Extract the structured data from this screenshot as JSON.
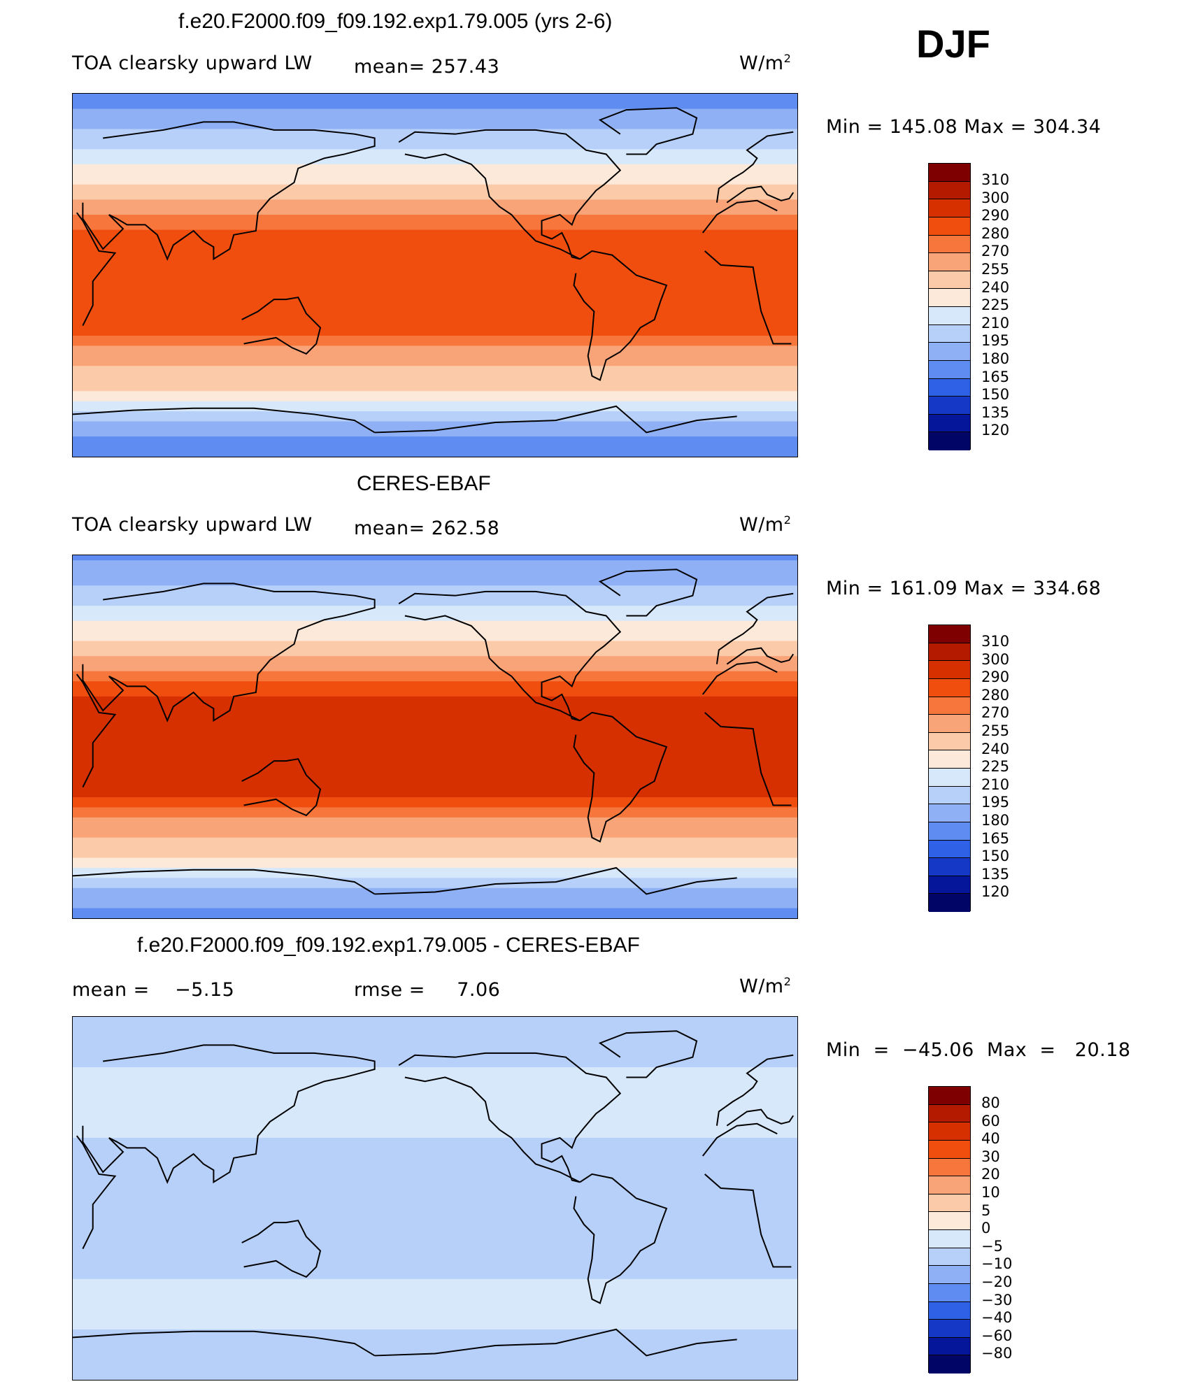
{
  "season": "DJF",
  "panels": [
    {
      "title": "f.e20.F2000.f09_f09.192.exp1.79.005 (yrs 2-6)",
      "left_label": "TOA clearsky upward LW",
      "mean_label": "mean= 257.43",
      "units": "W/m",
      "units_exp": "2",
      "minmax": "Min  =  145.08  Max  =  304.34",
      "colorbar_labels": [
        "310",
        "300",
        "290",
        "280",
        "270",
        "255",
        "240",
        "225",
        "210",
        "195",
        "180",
        "165",
        "150",
        "135",
        "120"
      ]
    },
    {
      "title": "CERES-EBAF",
      "left_label": "TOA clearsky upward LW",
      "mean_label": "mean= 262.58",
      "units": "W/m",
      "units_exp": "2",
      "minmax": "Min  =  161.09  Max  =  334.68",
      "colorbar_labels": [
        "310",
        "300",
        "290",
        "280",
        "270",
        "255",
        "240",
        "225",
        "210",
        "195",
        "180",
        "165",
        "150",
        "135",
        "120"
      ]
    },
    {
      "title": "f.e20.F2000.f09_f09.192.exp1.79.005 - CERES-EBAF",
      "left_label": "mean =    −5.15",
      "mean_label": "rmse =     7.06",
      "units": "W/m",
      "units_exp": "2",
      "minmax": "Min  =  −45.06  Max  =   20.18",
      "colorbar_labels": [
        "80",
        "60",
        "40",
        "30",
        "20",
        "10",
        "5",
        "0",
        "−5",
        "−10",
        "−20",
        "−30",
        "−40",
        "−60",
        "−80"
      ]
    }
  ],
  "colors": {
    "abs_scale": [
      "#7f0000",
      "#b31a00",
      "#d73000",
      "#f04e0f",
      "#f7763c",
      "#f9a378",
      "#fbcaa8",
      "#fde9d9",
      "#d7e8fb",
      "#b7d0f9",
      "#8fb0f5",
      "#5e8cf0",
      "#2f61e6",
      "#1638c7",
      "#06169a",
      "#010566"
    ],
    "diff_scale": [
      "#7f0000",
      "#b31a00",
      "#d73000",
      "#f04e0f",
      "#f7763c",
      "#f9a378",
      "#fbcaa8",
      "#fde9d9",
      "#d7e8fb",
      "#b7d0f9",
      "#8fb0f5",
      "#5e8cf0",
      "#2f61e6",
      "#1638c7",
      "#06169a",
      "#010566"
    ]
  },
  "chart_data": [
    {
      "type": "heatmap",
      "title": "f.e20.F2000.f09_f09.192.exp1.79.005 (yrs 2-6)",
      "variable": "TOA clearsky upward LW",
      "units": "W/m2",
      "mean": 257.43,
      "min": 145.08,
      "max": 304.34,
      "contour_levels": [
        120,
        135,
        150,
        165,
        180,
        195,
        210,
        225,
        240,
        255,
        270,
        280,
        290,
        300,
        310
      ],
      "zonal_profile": [
        {
          "lat": 90,
          "value": 170
        },
        {
          "lat": 75,
          "value": 190
        },
        {
          "lat": 60,
          "value": 215
        },
        {
          "lat": 45,
          "value": 240
        },
        {
          "lat": 30,
          "value": 270
        },
        {
          "lat": 15,
          "value": 290
        },
        {
          "lat": 0,
          "value": 285
        },
        {
          "lat": -15,
          "value": 290
        },
        {
          "lat": -30,
          "value": 280
        },
        {
          "lat": -45,
          "value": 255
        },
        {
          "lat": -60,
          "value": 235
        },
        {
          "lat": -75,
          "value": 190
        },
        {
          "lat": -90,
          "value": 165
        }
      ]
    },
    {
      "type": "heatmap",
      "title": "CERES-EBAF",
      "variable": "TOA clearsky upward LW",
      "units": "W/m2",
      "mean": 262.58,
      "min": 161.09,
      "max": 334.68,
      "contour_levels": [
        120,
        135,
        150,
        165,
        180,
        195,
        210,
        225,
        240,
        255,
        270,
        280,
        290,
        300,
        310
      ],
      "zonal_profile": [
        {
          "lat": 90,
          "value": 175
        },
        {
          "lat": 75,
          "value": 195
        },
        {
          "lat": 60,
          "value": 220
        },
        {
          "lat": 45,
          "value": 245
        },
        {
          "lat": 30,
          "value": 275
        },
        {
          "lat": 15,
          "value": 295
        },
        {
          "lat": 0,
          "value": 290
        },
        {
          "lat": -15,
          "value": 295
        },
        {
          "lat": -30,
          "value": 290
        },
        {
          "lat": -45,
          "value": 260
        },
        {
          "lat": -60,
          "value": 240
        },
        {
          "lat": -75,
          "value": 195
        },
        {
          "lat": -90,
          "value": 170
        }
      ]
    },
    {
      "type": "heatmap",
      "title": "f.e20.F2000.f09_f09.192.exp1.79.005 - CERES-EBAF",
      "variable": "TOA clearsky upward LW",
      "units": "W/m2",
      "mean": -5.15,
      "rmse": 7.06,
      "min": -45.06,
      "max": 20.18,
      "contour_levels": [
        -80,
        -60,
        -40,
        -30,
        -20,
        -10,
        -5,
        0,
        5,
        10,
        20,
        30,
        40,
        60,
        80
      ],
      "zonal_profile": [
        {
          "lat": 90,
          "value": -7
        },
        {
          "lat": 75,
          "value": -8
        },
        {
          "lat": 60,
          "value": -4
        },
        {
          "lat": 45,
          "value": -2
        },
        {
          "lat": 30,
          "value": -5
        },
        {
          "lat": 15,
          "value": -6
        },
        {
          "lat": 0,
          "value": -5
        },
        {
          "lat": -15,
          "value": -6
        },
        {
          "lat": -30,
          "value": -7
        },
        {
          "lat": -45,
          "value": -4
        },
        {
          "lat": -60,
          "value": -3
        },
        {
          "lat": -75,
          "value": -8
        },
        {
          "lat": -90,
          "value": -9
        }
      ]
    }
  ]
}
